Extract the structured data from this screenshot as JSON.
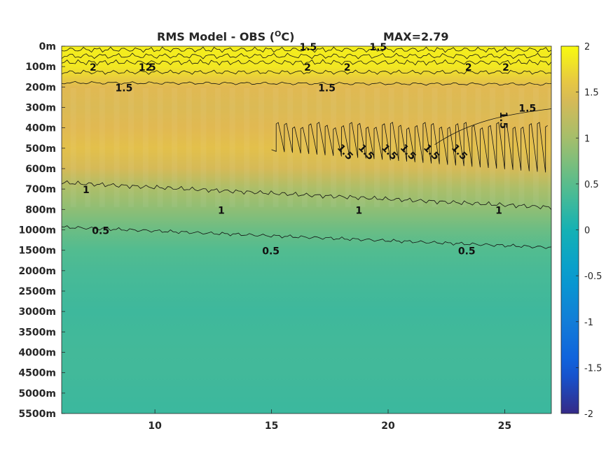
{
  "chart_data": {
    "type": "heatmap",
    "title": "RMS Model - OBS (",
    "title_unit_sup": "O",
    "title_unit_tail": "C)",
    "max_label": "MAX=2.79",
    "x_ticks": [
      10,
      15,
      20,
      25
    ],
    "xlim": [
      6,
      27
    ],
    "y_ticks": [
      "0m",
      "100m",
      "200m",
      "300m",
      "400m",
      "500m",
      "600m",
      "700m",
      "800m",
      "1000m",
      "1500m",
      "2000m",
      "2500m",
      "3000m",
      "3500m",
      "4000m",
      "4500m",
      "5000m",
      "5500m"
    ],
    "colorbar": {
      "ticks": [
        2,
        1.5,
        1,
        0.5,
        0,
        -0.5,
        -1,
        -1.5,
        -2
      ],
      "range": [
        -2,
        2
      ],
      "colormap": "parula"
    },
    "depth_profile": [
      {
        "level": "0m",
        "value": 1.9
      },
      {
        "level": "100m",
        "value": 1.85
      },
      {
        "level": "200m",
        "value": 1.5
      },
      {
        "level": "300m",
        "value": 1.45
      },
      {
        "level": "400m",
        "value": 1.5
      },
      {
        "level": "500m",
        "value": 1.55
      },
      {
        "level": "600m",
        "value": 1.4
      },
      {
        "level": "700m",
        "value": 1.05
      },
      {
        "level": "800m",
        "value": 0.85
      },
      {
        "level": "1000m",
        "value": 0.62
      },
      {
        "level": "1500m",
        "value": 0.45
      },
      {
        "level": "2000m",
        "value": 0.38
      },
      {
        "level": "2500m",
        "value": 0.34
      },
      {
        "level": "3000m",
        "value": 0.3
      },
      {
        "level": "3500m",
        "value": 0.32
      },
      {
        "level": "4000m",
        "value": 0.34
      },
      {
        "level": "4500m",
        "value": 0.33
      },
      {
        "level": "5000m",
        "value": 0.3
      },
      {
        "level": "5500m",
        "value": 0.28
      }
    ],
    "contour_levels": [
      0.5,
      1,
      1.5,
      2
    ],
    "contour_labels": [
      {
        "text": "1.5",
        "x": 9.3,
        "level": "100m"
      },
      {
        "text": "2",
        "x": 9.6,
        "level": "100m"
      },
      {
        "text": "1.5",
        "x": 16.2,
        "level": "0m"
      },
      {
        "text": "2",
        "x": 18.1,
        "level": "100m"
      },
      {
        "text": "1.5",
        "x": 19.2,
        "level": "0m"
      },
      {
        "text": "2",
        "x": 24.9,
        "level": "100m"
      },
      {
        "text": "2",
        "x": 7.2,
        "level": "100m"
      },
      {
        "text": "2",
        "x": 16.4,
        "level": "100m"
      },
      {
        "text": "2",
        "x": 23.3,
        "level": "100m"
      },
      {
        "text": "1.5",
        "x": 8.3,
        "level": "200m"
      },
      {
        "text": "1.5",
        "x": 17.0,
        "level": "200m"
      },
      {
        "text": "1.5",
        "x": 24.8,
        "level": "300m"
      },
      {
        "text": "1.5",
        "x": 25.6,
        "level": "300m"
      },
      {
        "text": "1.5",
        "x": 17.8,
        "level": "500m"
      },
      {
        "text": "1.5",
        "x": 18.7,
        "level": "500m"
      },
      {
        "text": "1.5",
        "x": 19.7,
        "level": "500m"
      },
      {
        "text": "1.5",
        "x": 20.5,
        "level": "500m"
      },
      {
        "text": "1.5",
        "x": 21.5,
        "level": "500m"
      },
      {
        "text": "1.5",
        "x": 22.7,
        "level": "500m"
      },
      {
        "text": "1",
        "x": 6.9,
        "level": "700m"
      },
      {
        "text": "1",
        "x": 12.7,
        "level": "800m"
      },
      {
        "text": "1",
        "x": 18.6,
        "level": "800m"
      },
      {
        "text": "1",
        "x": 24.6,
        "level": "800m"
      },
      {
        "text": "0.5",
        "x": 7.3,
        "level": "1000m"
      },
      {
        "text": "0.5",
        "x": 14.6,
        "level": "1500m"
      },
      {
        "text": "0.5",
        "x": 23.0,
        "level": "1500m"
      }
    ]
  }
}
